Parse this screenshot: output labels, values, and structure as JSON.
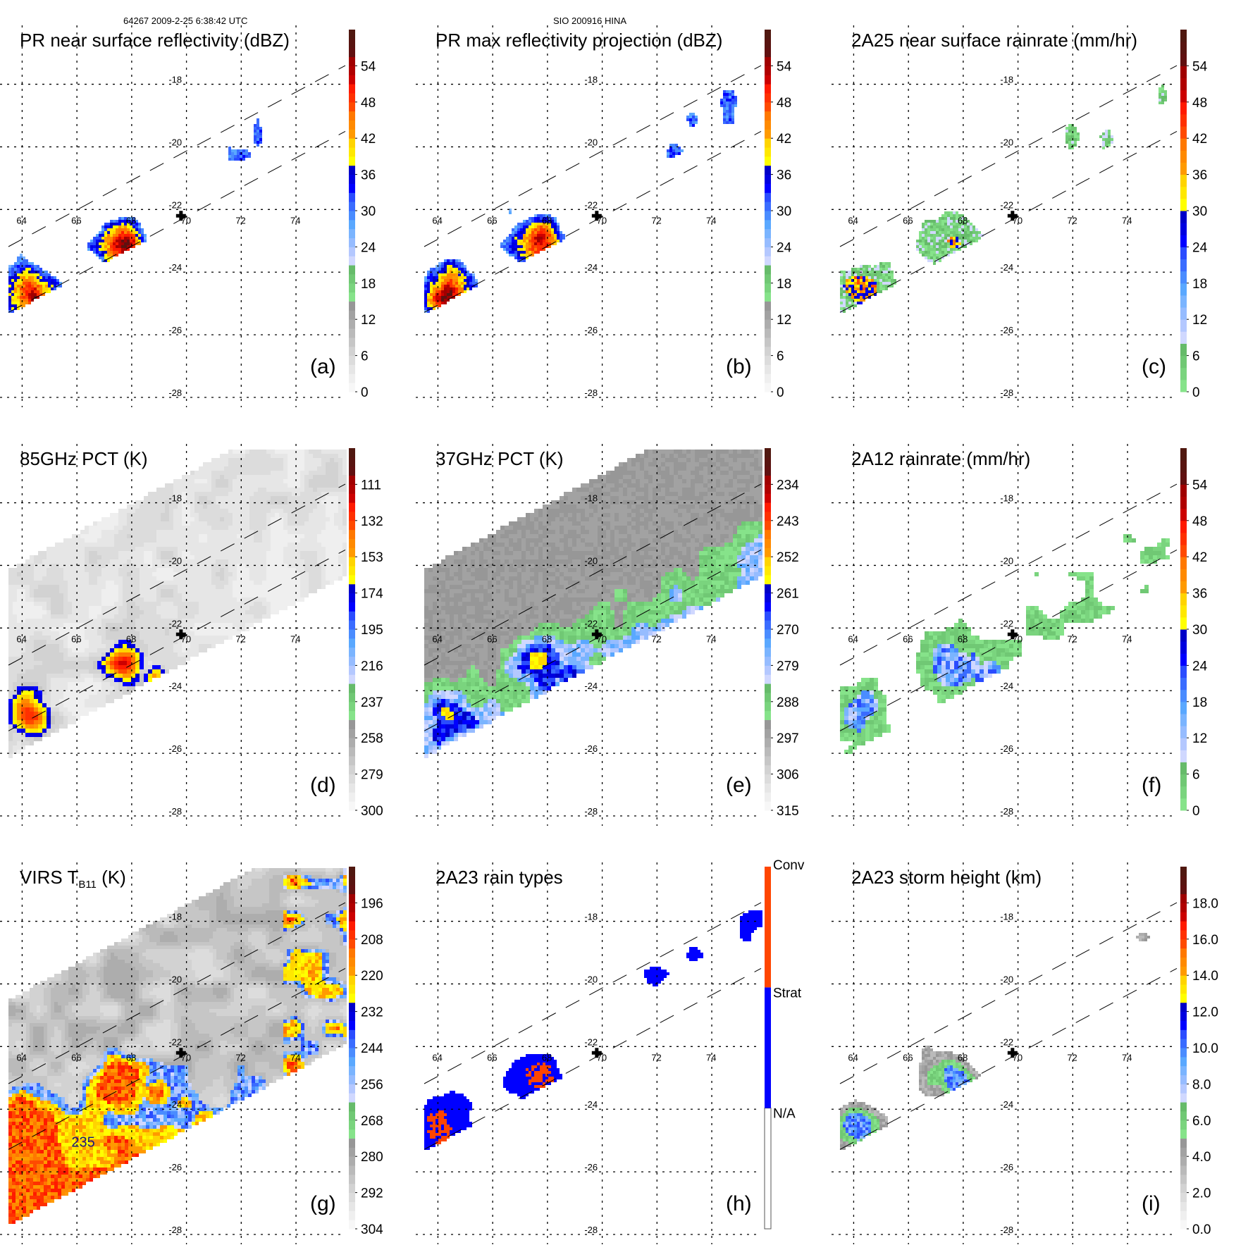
{
  "header": {
    "left": "64267 2009-2-25 6:38:42 UTC",
    "center": "SIO 200916 HINA"
  },
  "chart_data": [
    {
      "type": "heatmap",
      "id": "a",
      "title": "PR near surface reflectivity (dBZ)",
      "panel_label": "(a)",
      "swath": "pr",
      "field": "pr_ns",
      "colorbar": {
        "ticks": [
          "0",
          "6",
          "12",
          "18",
          "24",
          "30",
          "36",
          "42",
          "48",
          "54"
        ],
        "min": 0,
        "max": 60,
        "palette": "standard"
      },
      "lon_ticks": [
        "64",
        "66",
        "68",
        "70",
        "72",
        "74"
      ],
      "lat_ticks": [
        "-18",
        "-20",
        "-22",
        "-24",
        "-26",
        "-28"
      ],
      "xlim": [
        63.5,
        75.8
      ],
      "ylim": [
        -28,
        -16.3
      ],
      "storm_center": {
        "lon": 69.8,
        "lat": -22.2
      }
    },
    {
      "type": "heatmap",
      "id": "b",
      "title": "PR max reflectivity projection (dBZ)",
      "panel_label": "(b)",
      "swath": "pr",
      "field": "pr_max",
      "colorbar": {
        "ticks": [
          "0",
          "6",
          "12",
          "18",
          "24",
          "30",
          "36",
          "42",
          "48",
          "54"
        ],
        "min": 0,
        "max": 60,
        "palette": "standard"
      },
      "lon_ticks": [
        "64",
        "66",
        "68",
        "70",
        "72",
        "74"
      ],
      "lat_ticks": [
        "-18",
        "-20",
        "-22",
        "-24",
        "-26",
        "-28"
      ],
      "xlim": [
        63.5,
        75.8
      ],
      "ylim": [
        -28,
        -16.3
      ],
      "storm_center": {
        "lon": 69.8,
        "lat": -22.2
      }
    },
    {
      "type": "heatmap",
      "id": "c",
      "title": "2A25 near surface rainrate (mm/hr)",
      "panel_label": "(c)",
      "swath": "pr",
      "field": "rain2a25",
      "colorbar": {
        "ticks": [
          "0",
          "6",
          "12",
          "18",
          "24",
          "30",
          "36",
          "42",
          "48",
          "54"
        ],
        "min": 0,
        "max": 60,
        "palette": "rain"
      },
      "lon_ticks": [
        "64",
        "66",
        "68",
        "70",
        "72",
        "74"
      ],
      "lat_ticks": [
        "-18",
        "-20",
        "-22",
        "-24",
        "-26",
        "-28"
      ],
      "xlim": [
        63.5,
        75.8
      ],
      "ylim": [
        -28,
        -16.3
      ],
      "storm_center": {
        "lon": 69.8,
        "lat": -22.2
      }
    },
    {
      "type": "heatmap",
      "id": "d",
      "title": "85GHz PCT (K)",
      "panel_label": "(d)",
      "swath": "tmi",
      "field": "pct85",
      "colorbar": {
        "ticks": [
          "300",
          "279",
          "258",
          "237",
          "216",
          "195",
          "174",
          "153",
          "132",
          "111"
        ],
        "min": 300,
        "max": 90,
        "palette": "standard"
      },
      "lon_ticks": [
        "64",
        "66",
        "68",
        "70",
        "72",
        "74"
      ],
      "lat_ticks": [
        "-18",
        "-20",
        "-22",
        "-24",
        "-26",
        "-28"
      ],
      "xlim": [
        63.5,
        75.8
      ],
      "ylim": [
        -28,
        -16.3
      ],
      "storm_center": {
        "lon": 69.8,
        "lat": -22.2
      }
    },
    {
      "type": "heatmap",
      "id": "e",
      "title": "37GHz PCT (K)",
      "panel_label": "(e)",
      "swath": "tmi",
      "field": "pct37",
      "colorbar": {
        "ticks": [
          "315",
          "306",
          "297",
          "288",
          "279",
          "270",
          "261",
          "252",
          "243",
          "234"
        ],
        "min": 315,
        "max": 225,
        "palette": "standard"
      },
      "lon_ticks": [
        "64",
        "66",
        "68",
        "70",
        "72",
        "74"
      ],
      "lat_ticks": [
        "-18",
        "-20",
        "-22",
        "-24",
        "-26",
        "-28"
      ],
      "xlim": [
        63.5,
        75.8
      ],
      "ylim": [
        -28,
        -16.3
      ],
      "storm_center": {
        "lon": 69.8,
        "lat": -22.2
      }
    },
    {
      "type": "heatmap",
      "id": "f",
      "title": "2A12 rainrate (mm/hr)",
      "panel_label": "(f)",
      "swath": "tmi",
      "field": "rain2a12",
      "colorbar": {
        "ticks": [
          "0",
          "6",
          "12",
          "18",
          "24",
          "30",
          "36",
          "42",
          "48",
          "54"
        ],
        "min": 0,
        "max": 60,
        "palette": "rain"
      },
      "lon_ticks": [
        "64",
        "66",
        "68",
        "70",
        "72",
        "74"
      ],
      "lat_ticks": [
        "-18",
        "-20",
        "-22",
        "-24",
        "-26",
        "-28"
      ],
      "xlim": [
        63.5,
        75.8
      ],
      "ylim": [
        -28,
        -16.3
      ],
      "storm_center": {
        "lon": 69.8,
        "lat": -22.2
      }
    },
    {
      "type": "heatmap",
      "id": "g",
      "title": "VIRS T",
      "title_sub": "B11",
      "title_suffix": " (K)",
      "panel_label": "(g)",
      "swath": "virs",
      "field": "virs",
      "colorbar": {
        "ticks": [
          "304",
          "292",
          "280",
          "268",
          "256",
          "244",
          "232",
          "220",
          "208",
          "196"
        ],
        "min": 304,
        "max": 184,
        "palette": "standard"
      },
      "lon_ticks": [
        "64",
        "66",
        "68",
        "70",
        "72",
        "74"
      ],
      "lat_ticks": [
        "-18",
        "-20",
        "-22",
        "-24",
        "-26",
        "-28"
      ],
      "annotation": "235",
      "xlim": [
        63.5,
        75.8
      ],
      "ylim": [
        -28,
        -16.3
      ],
      "storm_center": {
        "lon": 69.8,
        "lat": -22.2
      }
    },
    {
      "type": "heatmap",
      "id": "h",
      "title": "2A23 rain types",
      "panel_label": "(h)",
      "swath": "pr",
      "field": "raintype",
      "colorbar": {
        "categories": [
          "N/A",
          "Strat",
          "Conv"
        ],
        "colors": [
          "#ffffff",
          "#0000ff",
          "#ff4500"
        ],
        "palette": "categorical"
      },
      "lon_ticks": [
        "64",
        "66",
        "68",
        "70",
        "72",
        "74"
      ],
      "lat_ticks": [
        "-18",
        "-20",
        "-22",
        "-24",
        "-26",
        "-28"
      ],
      "xlim": [
        63.5,
        75.8
      ],
      "ylim": [
        -28,
        -16.3
      ],
      "storm_center": {
        "lon": 69.8,
        "lat": -22.2
      }
    },
    {
      "type": "heatmap",
      "id": "i",
      "title": "2A23 storm height (km)",
      "panel_label": "(i)",
      "swath": "pr",
      "field": "stormh",
      "colorbar": {
        "ticks": [
          "0.0",
          "2.0",
          "4.0",
          "6.0",
          "8.0",
          "10.0",
          "12.0",
          "14.0",
          "16.0",
          "18.0"
        ],
        "min": 0,
        "max": 20,
        "palette": "standard"
      },
      "lon_ticks": [
        "64",
        "66",
        "68",
        "70",
        "72",
        "74"
      ],
      "lat_ticks": [
        "-18",
        "-20",
        "-22",
        "-24",
        "-26",
        "-28"
      ],
      "xlim": [
        63.5,
        75.8
      ],
      "ylim": [
        -28,
        -16.3
      ],
      "storm_center": {
        "lon": 69.8,
        "lat": -22.2
      }
    }
  ],
  "palettes": {
    "standard": [
      "#f7f7f7",
      "#efefef",
      "#e6e6e6",
      "#dcdcdc",
      "#d2d2d2",
      "#c6c6c6",
      "#bababa",
      "#adadad",
      "#a2a2a2",
      "#979797",
      "#86e38a",
      "#7ad47e",
      "#70c874",
      "#66bb6a",
      "#d0d8ff",
      "#b4c8ff",
      "#96bcff",
      "#7ab4ff",
      "#5aa8ff",
      "#4a8cff",
      "#3a6cff",
      "#2a4cff",
      "#0000ff",
      "#0000e0",
      "#0000c8",
      "#ffff00",
      "#ffe800",
      "#ffd400",
      "#ff9a00",
      "#ff8a00",
      "#ff7800",
      "#ff4a00",
      "#ff3000",
      "#ff1a00",
      "#cc0000",
      "#b00000",
      "#a00000",
      "#601010",
      "#581410",
      "#501810"
    ],
    "rain": [
      "#86e38a",
      "#7ad47e",
      "#70c874",
      "#66bb6a",
      "#d0d8ff",
      "#b4c8ff",
      "#96bcff",
      "#7ab4ff",
      "#5aa8ff",
      "#4a8cff",
      "#3a6cff",
      "#2a4cff",
      "#0000ff",
      "#0000e0",
      "#0000c8",
      "#ffff00",
      "#ffe800",
      "#ffd400",
      "#ff9a00",
      "#ff8a00",
      "#ff7800",
      "#ff4a00",
      "#ff3000",
      "#ff1a00",
      "#cc0000",
      "#b00000",
      "#a00000",
      "#601010",
      "#581410",
      "#501810"
    ]
  }
}
